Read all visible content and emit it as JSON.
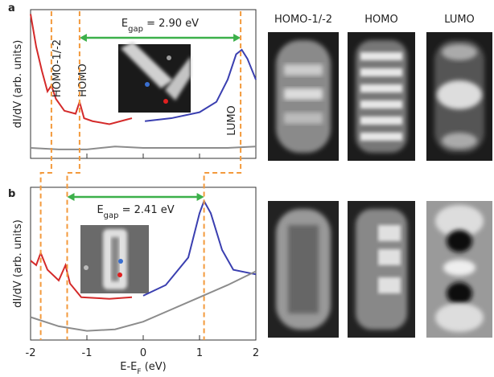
{
  "chart_data": [
    {
      "type": "line",
      "panel_label": "a",
      "ylabel": "dI/dV (arb. units)",
      "xlim": [
        -2,
        2
      ],
      "ylim": [
        0,
        1
      ],
      "xticks": [
        -2,
        -1,
        0,
        1,
        2
      ],
      "series": [
        {
          "color": "#d42a2a",
          "x": [
            -2,
            -1.9,
            -1.8,
            -1.7,
            -1.63,
            -1.55,
            -1.4,
            -1.2,
            -1.13,
            -1.05,
            -0.9,
            -0.6,
            -0.3,
            -0.2
          ],
          "values": [
            0.97,
            0.75,
            0.59,
            0.45,
            0.49,
            0.4,
            0.32,
            0.3,
            0.38,
            0.27,
            0.25,
            0.23,
            0.26,
            0.27
          ]
        },
        {
          "color": "#3a3fb0",
          "x": [
            0.03,
            0.5,
            1.0,
            1.3,
            1.5,
            1.65,
            1.75,
            1.85,
            2.0
          ],
          "values": [
            0.25,
            0.27,
            0.31,
            0.38,
            0.53,
            0.7,
            0.73,
            0.67,
            0.53
          ]
        },
        {
          "color": "#8c8c8c",
          "x": [
            -2,
            -1.5,
            -1,
            -0.5,
            0,
            0.5,
            1,
            1.5,
            2
          ],
          "values": [
            0.07,
            0.06,
            0.06,
            0.08,
            0.07,
            0.07,
            0.07,
            0.07,
            0.08
          ]
        }
      ],
      "markers": [
        {
          "label": "HOMO-1/-2",
          "x": -1.63
        },
        {
          "label": "HOMO",
          "x": -1.13
        },
        {
          "label": "LUMO",
          "x": 1.73
        }
      ],
      "gap_label": [
        "E",
        "gap",
        " = 2.90 eV"
      ]
    },
    {
      "type": "line",
      "panel_label": "b",
      "ylabel": "dI/dV (arb. units)",
      "xlabel": [
        "E-E",
        "F",
        " (eV)"
      ],
      "xlim": [
        -2,
        2
      ],
      "ylim": [
        0,
        1
      ],
      "xticks": [
        -2,
        -1,
        0,
        1,
        2
      ],
      "series": [
        {
          "color": "#d42a2a",
          "x": [
            -2,
            -1.9,
            -1.82,
            -1.7,
            -1.5,
            -1.38,
            -1.3,
            -1.1,
            -0.6,
            -0.2
          ],
          "values": [
            0.52,
            0.49,
            0.57,
            0.46,
            0.39,
            0.49,
            0.37,
            0.28,
            0.27,
            0.28
          ]
        },
        {
          "color": "#3a3fb0",
          "x": [
            0,
            0.4,
            0.8,
            1.0,
            1.08,
            1.2,
            1.4,
            1.6,
            2.0
          ],
          "values": [
            0.29,
            0.36,
            0.54,
            0.83,
            0.91,
            0.83,
            0.59,
            0.46,
            0.43
          ]
        },
        {
          "color": "#8c8c8c",
          "x": [
            -2,
            -1.5,
            -1,
            -0.5,
            0,
            0.5,
            1,
            1.5,
            2
          ],
          "values": [
            0.15,
            0.09,
            0.06,
            0.07,
            0.12,
            0.2,
            0.28,
            0.36,
            0.45
          ]
        }
      ],
      "markers": [
        {
          "x": -1.82
        },
        {
          "x": -1.35
        },
        {
          "x": 1.08
        }
      ],
      "gap_label": [
        "E",
        "gap",
        " = 2.41 eV"
      ]
    }
  ],
  "image_titles": [
    "HOMO-1/-2",
    "HOMO",
    "LUMO"
  ]
}
